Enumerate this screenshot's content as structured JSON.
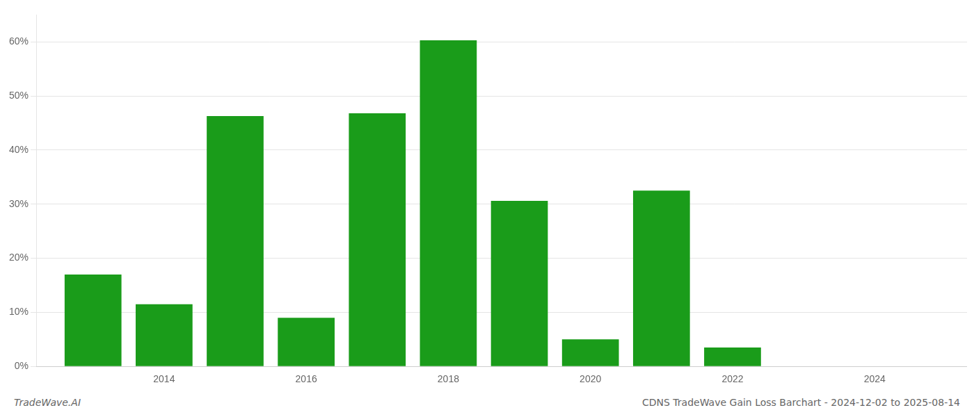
{
  "chart_data": {
    "type": "bar",
    "title": "CDNS TradeWave Gain Loss Barchart - 2024-12-02 to 2025-08-14",
    "annotations": [
      "TradeWave.AI"
    ],
    "x": [
      2013,
      2014,
      2015,
      2016,
      2017,
      2018,
      2019,
      2020,
      2021,
      2022,
      2023
    ],
    "values": [
      17.0,
      11.5,
      46.3,
      9.0,
      46.8,
      60.3,
      30.6,
      5.0,
      32.5,
      3.5,
      0.0
    ],
    "color": "#1a9c1a",
    "xlim": [
      2012.2,
      2025.3
    ],
    "xticks": [
      2014,
      2016,
      2018,
      2020,
      2022,
      2024
    ],
    "ylim": [
      0,
      65
    ],
    "yticks": [
      {
        "value": 0,
        "label": "0%"
      },
      {
        "value": 10,
        "label": "10%"
      },
      {
        "value": 20,
        "label": "20%"
      },
      {
        "value": 30,
        "label": "30%"
      },
      {
        "value": 40,
        "label": "40%"
      },
      {
        "value": 50,
        "label": "50%"
      },
      {
        "value": 60,
        "label": "60%"
      }
    ],
    "grid": "y"
  }
}
